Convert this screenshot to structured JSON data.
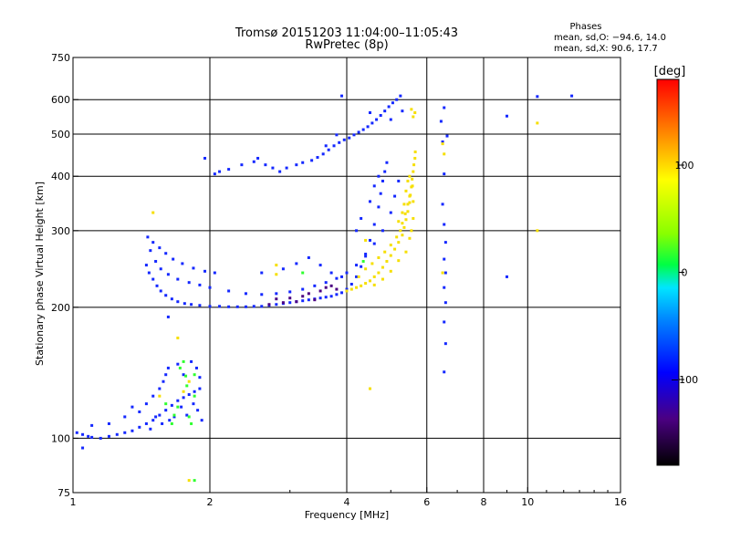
{
  "header": {
    "title_line1": "Tromsø 20151203 11:04:00–11:05:43",
    "title_line2": "RwPretec (8p)",
    "phases_title": "Phases",
    "phases_line1": "mean, sd,O: −94.6, 14.0",
    "phases_line2": "mean, sd,X:  90.6, 17.7"
  },
  "chart_data": {
    "type": "scatter",
    "xlabel": "Frequency [MHz]",
    "ylabel": "Stationary phase Virtual Height [km]",
    "xscale": "log",
    "yscale": "log",
    "xlim": [
      1,
      16
    ],
    "ylim": [
      75,
      750
    ],
    "xticks": [
      1,
      2,
      4,
      6,
      8,
      10,
      16
    ],
    "xtick_labels": [
      "1",
      "2",
      "4",
      "6",
      "8",
      "10",
      "16"
    ],
    "xgrid": [
      2,
      4,
      6,
      8,
      10
    ],
    "yticks": [
      75,
      100,
      200,
      300,
      400,
      500,
      600,
      750
    ],
    "ytick_labels": [
      "75",
      "100",
      "200",
      "300",
      "400",
      "500",
      "600",
      "750"
    ],
    "ygrid": [
      100,
      200,
      300,
      400,
      500,
      600
    ],
    "grid": true,
    "colorbar": {
      "label": "[deg]",
      "range": [
        -180,
        180
      ],
      "ticks": [
        100,
        0,
        -100
      ],
      "tick_labels": [
        "100",
        "0",
        "−100"
      ],
      "colormap": "rainbow"
    },
    "series": [
      {
        "kind": "O-mode",
        "phase": -100,
        "points": [
          [
            1.02,
            103
          ],
          [
            1.05,
            102
          ],
          [
            1.08,
            101
          ],
          [
            1.1,
            100.5
          ],
          [
            1.15,
            100
          ],
          [
            1.2,
            101
          ],
          [
            1.25,
            102
          ],
          [
            1.3,
            103
          ],
          [
            1.35,
            104
          ],
          [
            1.4,
            106
          ],
          [
            1.45,
            108
          ],
          [
            1.5,
            110
          ],
          [
            1.55,
            113
          ],
          [
            1.6,
            116
          ],
          [
            1.65,
            119
          ],
          [
            1.7,
            122
          ],
          [
            1.75,
            124
          ],
          [
            1.8,
            126
          ],
          [
            1.85,
            128
          ],
          [
            1.9,
            130
          ],
          [
            1.1,
            107
          ],
          [
            1.2,
            108
          ],
          [
            1.3,
            112
          ],
          [
            1.35,
            118
          ],
          [
            1.4,
            115
          ],
          [
            1.45,
            120
          ],
          [
            1.5,
            125
          ],
          [
            1.55,
            130
          ],
          [
            1.58,
            135
          ],
          [
            1.6,
            140
          ],
          [
            1.62,
            145
          ],
          [
            1.7,
            148
          ],
          [
            1.75,
            140
          ],
          [
            1.82,
            150
          ],
          [
            1.87,
            145
          ],
          [
            1.9,
            138
          ],
          [
            1.48,
            105
          ],
          [
            1.52,
            112
          ],
          [
            1.57,
            108
          ],
          [
            1.63,
            110
          ],
          [
            1.67,
            112
          ],
          [
            1.73,
            118
          ],
          [
            1.78,
            113
          ],
          [
            1.84,
            120
          ],
          [
            1.88,
            116
          ],
          [
            1.92,
            110
          ],
          [
            1.62,
            190
          ],
          [
            1.05,
            95
          ],
          [
            1.45,
            250
          ],
          [
            1.47,
            240
          ],
          [
            1.5,
            232
          ],
          [
            1.53,
            224
          ],
          [
            1.56,
            218
          ],
          [
            1.6,
            213
          ],
          [
            1.65,
            209
          ],
          [
            1.7,
            206
          ],
          [
            1.76,
            204
          ],
          [
            1.82,
            203
          ],
          [
            1.9,
            202
          ],
          [
            2.0,
            201
          ],
          [
            2.1,
            201
          ],
          [
            2.2,
            200.5
          ],
          [
            2.3,
            200.5
          ],
          [
            2.4,
            200.5
          ],
          [
            2.5,
            201
          ],
          [
            2.6,
            201
          ],
          [
            2.7,
            202
          ],
          [
            2.8,
            203
          ],
          [
            2.9,
            204
          ],
          [
            3.0,
            205
          ],
          [
            3.1,
            206
          ],
          [
            3.2,
            207
          ],
          [
            3.3,
            208
          ],
          [
            3.4,
            209
          ],
          [
            3.5,
            210
          ],
          [
            3.6,
            211
          ],
          [
            3.7,
            212
          ],
          [
            3.8,
            214
          ],
          [
            3.9,
            216
          ],
          [
            4.0,
            220
          ],
          [
            4.1,
            226
          ],
          [
            4.2,
            235
          ],
          [
            4.3,
            248
          ],
          [
            4.4,
            265
          ],
          [
            4.5,
            285
          ],
          [
            4.6,
            310
          ],
          [
            4.7,
            340
          ],
          [
            4.75,
            365
          ],
          [
            4.8,
            390
          ],
          [
            4.85,
            410
          ],
          [
            4.9,
            430
          ],
          [
            1.48,
            270
          ],
          [
            1.52,
            255
          ],
          [
            1.56,
            245
          ],
          [
            1.62,
            238
          ],
          [
            1.7,
            232
          ],
          [
            1.8,
            228
          ],
          [
            1.9,
            225
          ],
          [
            2.0,
            222
          ],
          [
            2.2,
            218
          ],
          [
            2.4,
            215
          ],
          [
            2.6,
            214
          ],
          [
            2.8,
            215
          ],
          [
            3.0,
            217
          ],
          [
            3.2,
            220
          ],
          [
            3.4,
            224
          ],
          [
            3.6,
            228
          ],
          [
            3.8,
            233
          ],
          [
            4.0,
            240
          ],
          [
            4.2,
            250
          ],
          [
            4.4,
            262
          ],
          [
            4.6,
            280
          ],
          [
            4.8,
            300
          ],
          [
            5.0,
            330
          ],
          [
            5.1,
            360
          ],
          [
            5.2,
            390
          ],
          [
            1.46,
            290
          ],
          [
            1.5,
            282
          ],
          [
            1.55,
            274
          ],
          [
            1.6,
            266
          ],
          [
            1.66,
            258
          ],
          [
            1.74,
            252
          ],
          [
            1.84,
            246
          ],
          [
            1.95,
            242
          ],
          [
            2.05,
            240
          ],
          [
            2.6,
            240
          ],
          [
            2.9,
            245
          ],
          [
            3.1,
            252
          ],
          [
            3.3,
            260
          ],
          [
            3.5,
            250
          ],
          [
            3.7,
            240
          ],
          [
            3.9,
            235
          ],
          [
            4.2,
            300
          ],
          [
            4.3,
            320
          ],
          [
            4.5,
            350
          ],
          [
            4.6,
            380
          ],
          [
            4.7,
            400
          ],
          [
            2.05,
            405
          ],
          [
            2.1,
            410
          ],
          [
            2.2,
            415
          ],
          [
            2.35,
            425
          ],
          [
            2.5,
            432
          ],
          [
            2.55,
            440
          ],
          [
            2.65,
            425
          ],
          [
            2.75,
            418
          ],
          [
            2.85,
            410
          ],
          [
            2.95,
            418
          ],
          [
            3.1,
            425
          ],
          [
            3.2,
            430
          ],
          [
            3.35,
            435
          ],
          [
            3.45,
            442
          ],
          [
            3.55,
            450
          ],
          [
            3.65,
            460
          ],
          [
            3.75,
            470
          ],
          [
            3.85,
            478
          ],
          [
            3.95,
            485
          ],
          [
            4.05,
            490
          ],
          [
            4.15,
            498
          ],
          [
            4.25,
            505
          ],
          [
            4.35,
            512
          ],
          [
            4.45,
            520
          ],
          [
            4.55,
            530
          ],
          [
            4.65,
            540
          ],
          [
            4.75,
            552
          ],
          [
            4.85,
            565
          ],
          [
            4.95,
            578
          ],
          [
            5.05,
            590
          ],
          [
            5.15,
            600
          ],
          [
            5.25,
            612
          ],
          [
            3.6,
            470
          ],
          [
            3.8,
            498
          ],
          [
            4.5,
            560
          ],
          [
            1.95,
            440
          ],
          [
            6.45,
            535
          ],
          [
            6.55,
            575
          ],
          [
            6.65,
            495
          ],
          [
            6.5,
            480
          ],
          [
            6.55,
            405
          ],
          [
            6.5,
            345
          ],
          [
            6.55,
            310
          ],
          [
            6.6,
            282
          ],
          [
            6.55,
            258
          ],
          [
            6.6,
            240
          ],
          [
            6.55,
            222
          ],
          [
            6.6,
            205
          ],
          [
            6.55,
            185
          ],
          [
            6.6,
            165
          ],
          [
            6.55,
            142
          ],
          [
            9.0,
            550
          ],
          [
            10.5,
            610
          ],
          [
            12.5,
            612
          ],
          [
            3.9,
            612
          ],
          [
            9.0,
            235
          ],
          [
            5.3,
            565
          ],
          [
            5.0,
            540
          ]
        ]
      },
      {
        "kind": "X-mode",
        "phase": 95,
        "points": [
          [
            4.0,
            218
          ],
          [
            4.1,
            220
          ],
          [
            4.2,
            222
          ],
          [
            4.3,
            224
          ],
          [
            4.4,
            227
          ],
          [
            4.5,
            230
          ],
          [
            4.6,
            235
          ],
          [
            4.7,
            240
          ],
          [
            4.8,
            247
          ],
          [
            4.9,
            255
          ],
          [
            5.0,
            263
          ],
          [
            5.1,
            272
          ],
          [
            5.2,
            282
          ],
          [
            5.3,
            293
          ],
          [
            5.35,
            305
          ],
          [
            5.4,
            318
          ],
          [
            5.45,
            332
          ],
          [
            5.5,
            348
          ],
          [
            5.52,
            362
          ],
          [
            5.55,
            378
          ],
          [
            5.57,
            394
          ],
          [
            5.6,
            410
          ],
          [
            5.62,
            425
          ],
          [
            5.65,
            440
          ],
          [
            5.66,
            455
          ],
          [
            4.25,
            235
          ],
          [
            4.4,
            245
          ],
          [
            4.55,
            252
          ],
          [
            4.7,
            260
          ],
          [
            4.85,
            268
          ],
          [
            5.0,
            278
          ],
          [
            5.15,
            290
          ],
          [
            5.25,
            300
          ],
          [
            5.3,
            312
          ],
          [
            5.38,
            328
          ],
          [
            5.45,
            345
          ],
          [
            5.5,
            360
          ],
          [
            4.6,
            225
          ],
          [
            4.8,
            232
          ],
          [
            5.0,
            242
          ],
          [
            5.2,
            256
          ],
          [
            5.4,
            268
          ],
          [
            5.5,
            288
          ],
          [
            5.55,
            300
          ],
          [
            5.6,
            320
          ],
          [
            5.6,
            350
          ],
          [
            5.58,
            380
          ],
          [
            5.5,
            400
          ],
          [
            5.45,
            390
          ],
          [
            5.4,
            370
          ],
          [
            5.35,
            345
          ],
          [
            5.3,
            330
          ],
          [
            5.2,
            315
          ],
          [
            5.6,
            548
          ],
          [
            5.65,
            560
          ],
          [
            5.55,
            570
          ],
          [
            2.8,
            250
          ],
          [
            2.8,
            238
          ],
          [
            1.5,
            330
          ],
          [
            1.8,
            135
          ],
          [
            1.75,
            128
          ],
          [
            10.5,
            300
          ],
          [
            10.5,
            530
          ],
          [
            6.5,
            475
          ],
          [
            6.55,
            450
          ],
          [
            6.5,
            240
          ],
          [
            4.4,
            285
          ],
          [
            1.7,
            170
          ],
          [
            1.55,
            125
          ],
          [
            4.5,
            130
          ],
          [
            1.8,
            80
          ]
        ]
      },
      {
        "kind": "mixed-phase",
        "phase": 20,
        "points": [
          [
            1.72,
            145
          ],
          [
            1.78,
            132
          ],
          [
            1.85,
            140
          ],
          [
            1.8,
            112
          ],
          [
            1.65,
            108
          ],
          [
            1.6,
            120
          ],
          [
            1.85,
            125
          ],
          [
            4.35,
            255
          ],
          [
            3.2,
            240
          ],
          [
            1.75,
            150
          ],
          [
            1.7,
            118
          ],
          [
            1.82,
            108
          ],
          [
            1.85,
            80
          ],
          [
            1.77,
            139
          ],
          [
            1.67,
            113
          ]
        ]
      },
      {
        "kind": "dark-phase",
        "phase": -140,
        "points": [
          [
            2.9,
            205
          ],
          [
            3.0,
            210
          ],
          [
            3.1,
            206
          ],
          [
            3.2,
            212
          ],
          [
            3.3,
            215
          ],
          [
            3.4,
            208
          ],
          [
            3.5,
            218
          ],
          [
            3.6,
            222
          ],
          [
            3.7,
            224
          ],
          [
            3.8,
            220
          ],
          [
            2.7,
            203
          ],
          [
            2.8,
            209
          ]
        ]
      }
    ]
  }
}
